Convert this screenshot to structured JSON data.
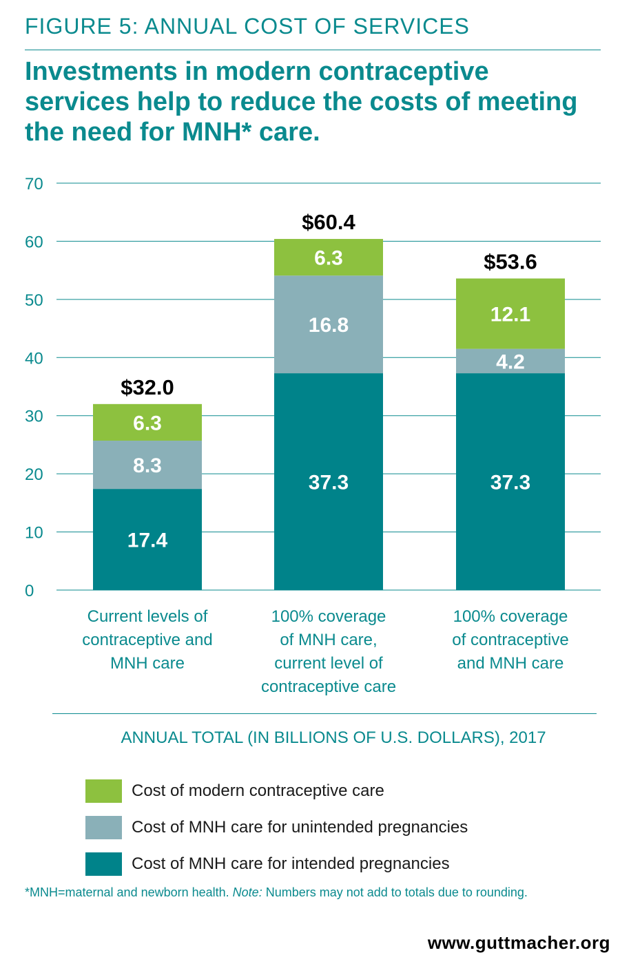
{
  "figure_label": "FIGURE 5: ANNUAL COST OF SERVICES",
  "headline": "Investments in modern contraceptive services help to reduce the costs of meeting the need for MNH* care.",
  "axis_title": "ANNUAL TOTAL (IN BILLIONS OF U.S. DOLLARS), 2017",
  "footnote": {
    "prefix": "*MNH=maternal and newborn health. ",
    "note_label": "Note:",
    "suffix": " Numbers may not add to totals due to rounding."
  },
  "website": "www.guttmacher.org",
  "chart_data": {
    "type": "bar",
    "stacked": true,
    "categories": [
      [
        "Current levels of",
        "contraceptive and",
        "MNH care"
      ],
      [
        "100% coverage",
        "of MNH care,",
        "current level of",
        "contraceptive care"
      ],
      [
        "100% coverage",
        "of contraceptive",
        "and MNH care"
      ]
    ],
    "series": [
      {
        "name": "Cost of MNH care for intended pregnancies",
        "color": "#00838a",
        "values": [
          17.4,
          37.3,
          37.3
        ]
      },
      {
        "name": "Cost of MNH care for unintended pregnancies",
        "color": "#8ab0b8",
        "values": [
          8.3,
          16.8,
          4.2
        ]
      },
      {
        "name": "Cost of modern contraceptive care",
        "color": "#8dc13f",
        "values": [
          6.3,
          6.3,
          12.1
        ]
      }
    ],
    "totals": [
      "$32.0",
      "$60.4",
      "$53.6"
    ],
    "ylim": [
      0,
      70
    ],
    "yticks": [
      0,
      10,
      20,
      30,
      40,
      50,
      60,
      70
    ],
    "grid": true,
    "legend_position": "bottom"
  }
}
